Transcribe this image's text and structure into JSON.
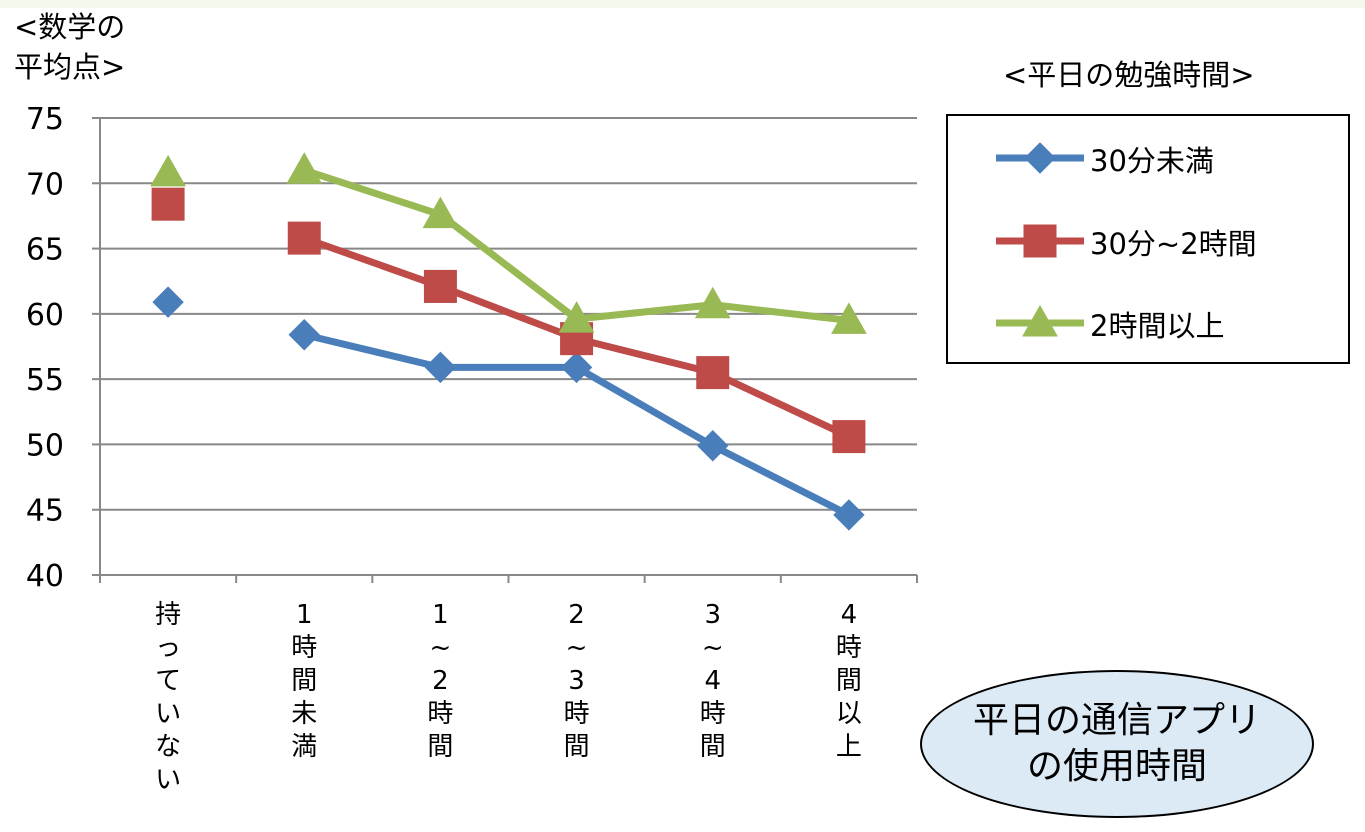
{
  "y_axis_title": [
    "<数学の",
    "平均点>"
  ],
  "legend_title": "<平日の勉強時間>",
  "annotation": [
    "平日の通信アプリ",
    "の使用時間"
  ],
  "chart_data": {
    "type": "line",
    "categories": [
      "持っていない",
      "1時間未満",
      "1~2時間",
      "2~3時間",
      "3~4時間",
      "4時間以上"
    ],
    "category_label_chars": [
      [
        "持",
        "っ",
        "て",
        "い",
        "な",
        "い"
      ],
      [
        "1",
        "時",
        "間",
        "未",
        "満"
      ],
      [
        "1",
        "~",
        "2",
        "時",
        "間"
      ],
      [
        "2",
        "~",
        "3",
        "時",
        "間"
      ],
      [
        "3",
        "~",
        "4",
        "時",
        "間"
      ],
      [
        "4",
        "時",
        "間",
        "以",
        "上"
      ]
    ],
    "ylim": [
      40,
      75
    ],
    "yticks": [
      40,
      45,
      50,
      55,
      60,
      65,
      70,
      75
    ],
    "grid": true,
    "legend_position": "right",
    "series": [
      {
        "name": "30分未満",
        "color": "#4a7ebb",
        "marker": "diamond",
        "values": [
          60.9,
          58.4,
          55.9,
          55.9,
          49.9,
          44.6
        ],
        "connected_from": 1
      },
      {
        "name": "30分~2時間",
        "color": "#be4b48",
        "marker": "square",
        "values": [
          68.4,
          65.8,
          62.1,
          58.1,
          55.5,
          50.6
        ],
        "connected_from": 1
      },
      {
        "name": "2時間以上",
        "color": "#98b954",
        "marker": "triangle",
        "values": [
          70.8,
          71.0,
          67.6,
          59.6,
          60.7,
          59.5
        ],
        "connected_from": 1
      }
    ]
  }
}
